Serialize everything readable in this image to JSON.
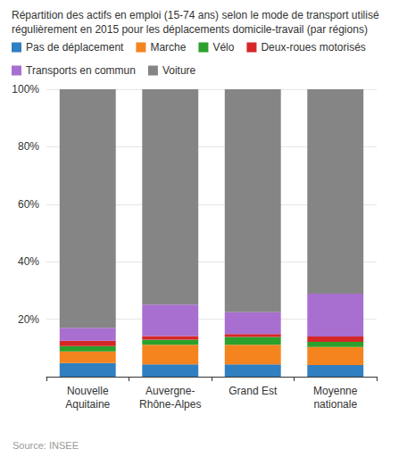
{
  "chart_data": {
    "type": "bar",
    "title": "Répartition des actifs en emploi (15-74 ans) selon le mode de transport utilisé régulièrement en 2015 pour les déplacements domicile-travail (par régions)",
    "annotations": [
      "Source: INSEE"
    ],
    "categories": [
      "Nouvelle\nAquitaine",
      "Auvergne-\nRhône-Alpes",
      "Grand Est",
      "Moyenne\nnationale"
    ],
    "series": [
      {
        "name": "Pas de déplacement",
        "color": "#2f7fc1",
        "values": [
          4.7,
          4.3,
          4.3,
          4.0
        ]
      },
      {
        "name": "Marche",
        "color": "#f5841f",
        "values": [
          4.1,
          6.8,
          6.8,
          6.3
        ]
      },
      {
        "name": "Vélo",
        "color": "#2ca02c",
        "values": [
          1.8,
          1.8,
          2.7,
          1.8
        ]
      },
      {
        "name": "Deux-roues motorisés",
        "color": "#d62728",
        "values": [
          1.9,
          1.2,
          1.0,
          1.9
        ]
      },
      {
        "name": "Transports en commun",
        "color": "#a86fd0",
        "values": [
          4.5,
          11.0,
          7.6,
          14.9
        ]
      },
      {
        "name": "Voiture",
        "color": "#858585",
        "values": [
          83.0,
          74.9,
          77.6,
          71.1
        ]
      }
    ],
    "stacked": true,
    "ylim": [
      0,
      100
    ],
    "yticks": [
      {
        "value": 20,
        "label": "20%"
      },
      {
        "value": 40,
        "label": "40%"
      },
      {
        "value": 60,
        "label": "60%"
      },
      {
        "value": 80,
        "label": "80%"
      },
      {
        "value": 100,
        "label": "100%"
      }
    ],
    "grid": true,
    "legend": "top-left"
  }
}
